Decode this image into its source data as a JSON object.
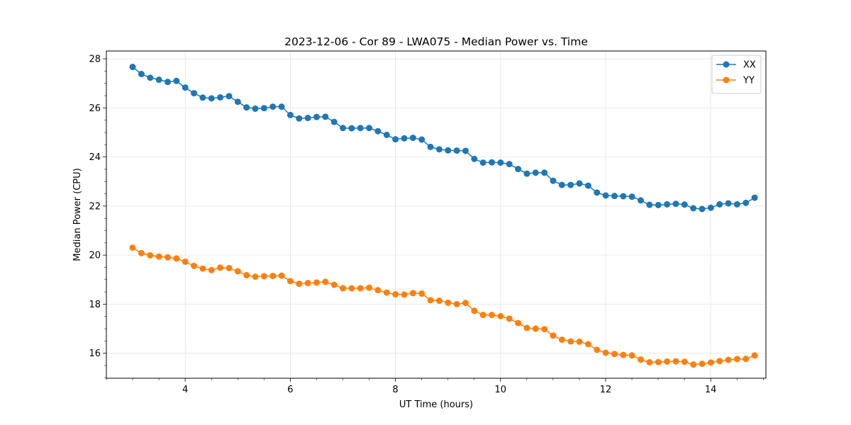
{
  "chart_data": {
    "type": "line",
    "title": "2023-12-06 - Cor 89 - LWA075 - Median Power vs. Time",
    "xlabel": "UT Time (hours)",
    "ylabel": "Median Power (CPU)",
    "xlim": [
      2.5,
      15.05
    ],
    "ylim": [
      14.98,
      28.32
    ],
    "xticks": [
      4,
      6,
      8,
      10,
      12,
      14
    ],
    "yticks": [
      16,
      18,
      20,
      22,
      24,
      26,
      28
    ],
    "x_minor_step": 0.5,
    "y_minor_step": 0.5,
    "grid": true,
    "legend_position": "upper right",
    "x_start": 3.0,
    "x_step": 0.1667,
    "series": [
      {
        "name": "XX",
        "color": "#1f77b4",
        "marker": "circle",
        "values": [
          27.67,
          27.38,
          27.23,
          27.15,
          27.06,
          27.1,
          26.83,
          26.6,
          26.42,
          26.39,
          26.43,
          26.48,
          26.25,
          26.02,
          25.97,
          25.99,
          26.05,
          26.05,
          25.71,
          25.57,
          25.59,
          25.63,
          25.64,
          25.43,
          25.18,
          25.17,
          25.18,
          25.18,
          25.05,
          24.9,
          24.72,
          24.76,
          24.78,
          24.71,
          24.41,
          24.31,
          24.27,
          24.26,
          24.25,
          23.92,
          23.77,
          23.78,
          23.77,
          23.71,
          23.51,
          23.32,
          23.36,
          23.36,
          23.03,
          22.86,
          22.86,
          22.92,
          22.83,
          22.55,
          22.43,
          22.41,
          22.4,
          22.38,
          22.23,
          22.05,
          22.04,
          22.07,
          22.09,
          22.06,
          21.91,
          21.88,
          21.93,
          22.07,
          22.11,
          22.07,
          22.13,
          22.34
        ]
      },
      {
        "name": "YY",
        "color": "#ff7f0e",
        "marker": "circle",
        "values": [
          20.3,
          20.08,
          19.99,
          19.94,
          19.91,
          19.86,
          19.73,
          19.56,
          19.45,
          19.39,
          19.49,
          19.47,
          19.34,
          19.18,
          19.12,
          19.14,
          19.15,
          19.16,
          18.94,
          18.83,
          18.86,
          18.88,
          18.91,
          18.79,
          18.65,
          18.65,
          18.65,
          18.67,
          18.57,
          18.47,
          18.4,
          18.39,
          18.45,
          18.43,
          18.16,
          18.14,
          18.06,
          18.0,
          18.05,
          17.73,
          17.56,
          17.56,
          17.51,
          17.41,
          17.23,
          17.03,
          17.0,
          16.98,
          16.72,
          16.55,
          16.48,
          16.47,
          16.37,
          16.14,
          16.02,
          15.97,
          15.93,
          15.91,
          15.74,
          15.63,
          15.64,
          15.66,
          15.67,
          15.65,
          15.54,
          15.57,
          15.62,
          15.68,
          15.73,
          15.76,
          15.77,
          15.91
        ]
      }
    ]
  }
}
